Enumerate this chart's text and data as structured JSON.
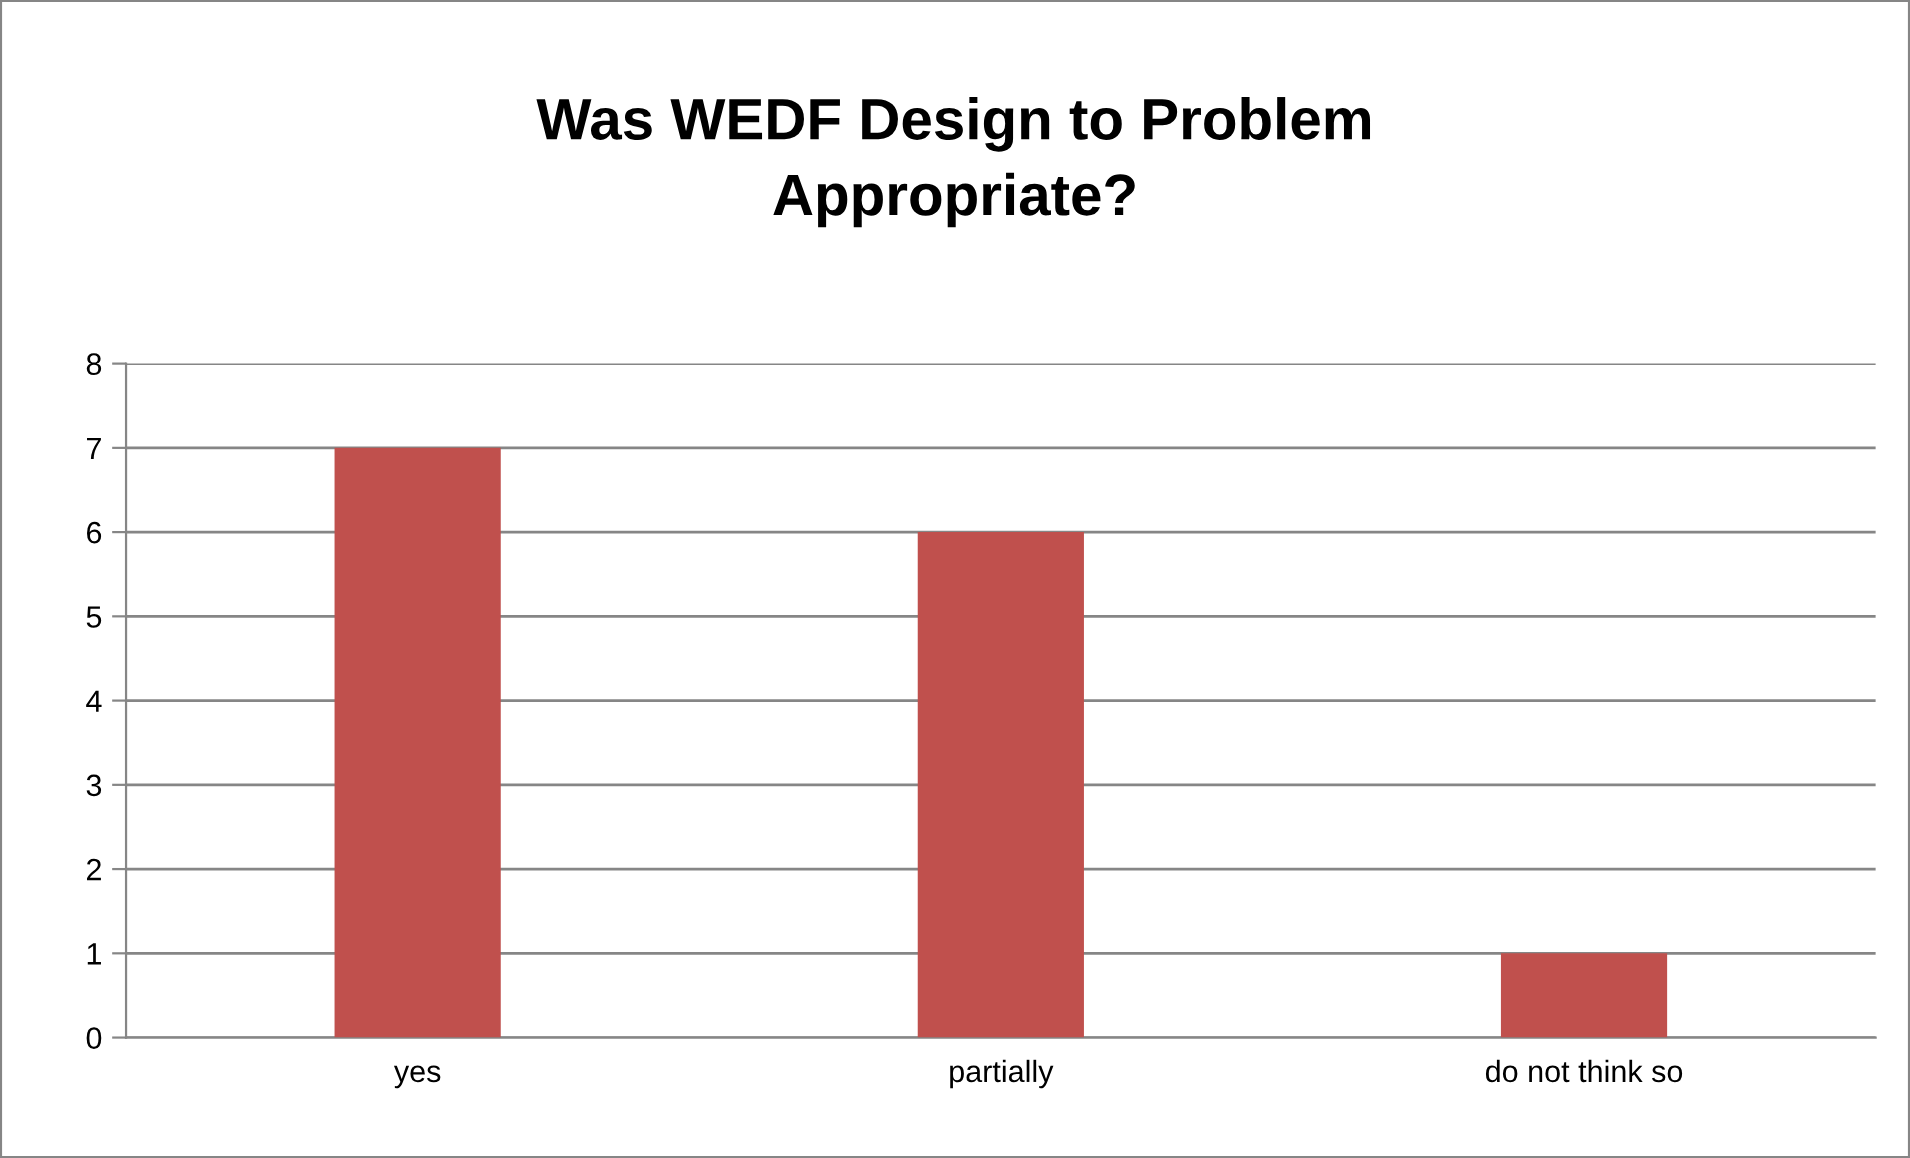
{
  "chart_data": {
    "type": "bar",
    "title": "Was WEDF Design to Problem\nAppropriate?",
    "categories": [
      "yes",
      "partially",
      "do not think so"
    ],
    "values": [
      7,
      6,
      1
    ],
    "color": "#c0504d",
    "ylim": [
      0,
      8
    ],
    "yticks": [
      0,
      1,
      2,
      3,
      4,
      5,
      6,
      7,
      8
    ],
    "grid": "y",
    "legend": false
  }
}
